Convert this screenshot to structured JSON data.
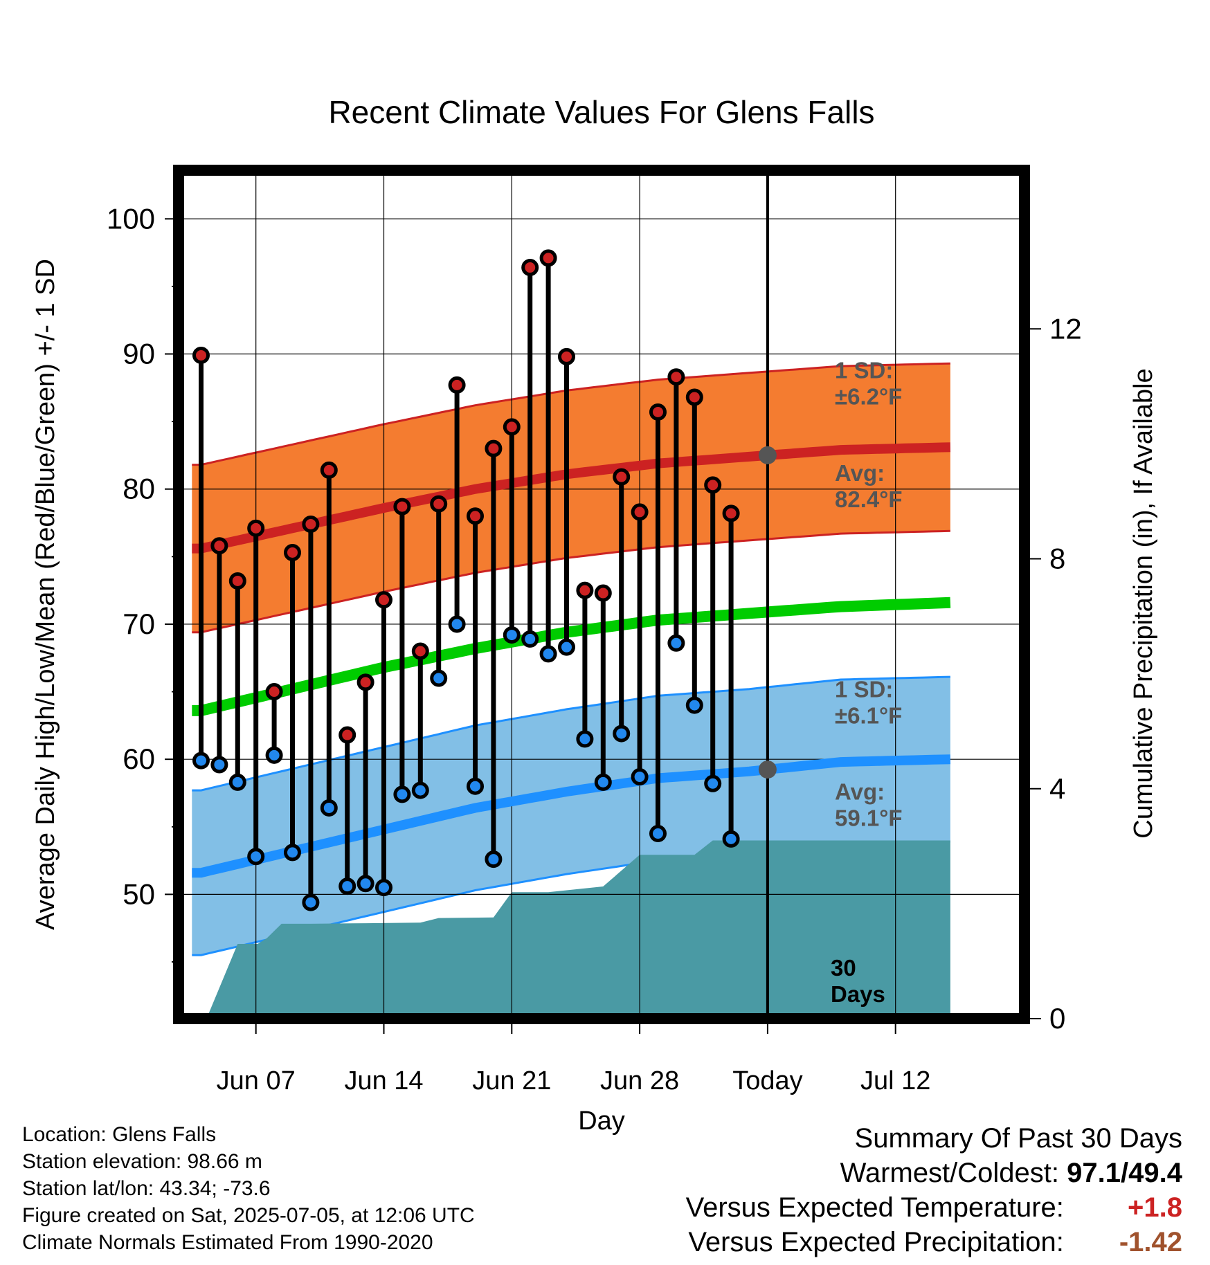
{
  "chart_data": {
    "type": "line",
    "title": "Recent Climate Values For Glens Falls",
    "xlabel": "Day",
    "ylabel": "Average Daily High/Low/Mean (Red/Blue/Green) +/- 1 SD",
    "y2label": "Cumulative Precipitation (in), If Available",
    "ylim": [
      40.8,
      103.6
    ],
    "y2lim": [
      0,
      14.76
    ],
    "xlim": [
      -0.5,
      41.3
    ],
    "x_ticks": [
      {
        "x": 3,
        "label": "Jun 07"
      },
      {
        "x": 10,
        "label": "Jun 14"
      },
      {
        "x": 17,
        "label": "Jun 21"
      },
      {
        "x": 24,
        "label": "Jun 28"
      },
      {
        "x": 31,
        "label": "Today"
      },
      {
        "x": 38,
        "label": "Jul 12"
      }
    ],
    "y_ticks": [
      50,
      60,
      70,
      80,
      90,
      100
    ],
    "y2_ticks": [
      0,
      4,
      8,
      12
    ],
    "grid": true,
    "days_label": "30\nDays",
    "today_x": 31,
    "high_label": "1 SD:\n±6.2°F",
    "high_avg_label": "Avg:\n82.4°F",
    "low_label": "1 SD:\n±6.1°F",
    "low_avg_label": "Avg:\n59.1°F",
    "normals_x": [
      0,
      5,
      10,
      15,
      20,
      25,
      30,
      35,
      41
    ],
    "normal_high": [
      75.6,
      77.1,
      78.6,
      80.0,
      81.1,
      81.9,
      82.4,
      82.9,
      83.1
    ],
    "normal_low": [
      51.6,
      53.2,
      54.8,
      56.4,
      57.6,
      58.6,
      59.1,
      59.8,
      60.0
    ],
    "normal_mean": [
      63.6,
      65.2,
      66.8,
      68.2,
      69.4,
      70.3,
      70.8,
      71.3,
      71.6
    ],
    "high_sd": 6.2,
    "low_sd": 6.1,
    "series": [
      {
        "name": "High",
        "color": "#cc2222",
        "x": [
          0,
          1,
          2,
          3,
          4,
          5,
          6,
          7,
          8,
          9,
          10,
          11,
          12,
          13,
          14,
          15,
          16,
          17,
          18,
          19,
          20,
          21,
          22,
          23,
          24,
          25,
          26,
          27,
          28,
          29,
          30
        ],
        "values": [
          89.9,
          75.8,
          73.2,
          77.1,
          65.0,
          75.3,
          77.4,
          81.4,
          61.8,
          65.7,
          71.8,
          78.7,
          68.0,
          78.9,
          87.7,
          78.0,
          83.0,
          84.6,
          96.4,
          97.1,
          89.8,
          72.5,
          72.3,
          80.9,
          78.3,
          85.7,
          88.3,
          86.8,
          80.3,
          78.2,
          null
        ]
      },
      {
        "name": "Low",
        "color": "#2288ee",
        "x": [
          0,
          1,
          2,
          3,
          4,
          5,
          6,
          7,
          8,
          9,
          10,
          11,
          12,
          13,
          14,
          15,
          16,
          17,
          18,
          19,
          20,
          21,
          22,
          23,
          24,
          25,
          26,
          27,
          28,
          29,
          30
        ],
        "values": [
          59.9,
          59.6,
          58.3,
          52.8,
          60.3,
          53.1,
          49.4,
          56.4,
          50.6,
          50.8,
          50.5,
          57.4,
          57.7,
          66.0,
          70.0,
          58.0,
          52.6,
          69.2,
          68.9,
          67.8,
          68.3,
          61.5,
          58.3,
          61.9,
          58.7,
          54.5,
          68.6,
          64.0,
          58.2,
          54.1,
          null
        ]
      }
    ],
    "precip_x": [
      0.3,
      2.0,
      2.6,
      3.1,
      3.6,
      4.4,
      6.0,
      9.0,
      12.0,
      13.0,
      16.0,
      17.0,
      19.0,
      22.0,
      24.0,
      27.0,
      28.0,
      41.0
    ],
    "precip_values": [
      0.0,
      1.3,
      1.3,
      1.3,
      1.4,
      1.65,
      1.65,
      1.66,
      1.67,
      1.75,
      1.76,
      2.2,
      2.2,
      2.3,
      2.85,
      2.85,
      3.1,
      3.1
    ]
  },
  "footer": {
    "location": "Location: Glens Falls",
    "elevation": "Station elevation: 98.66 m",
    "latlon": "Station lat/lon: 43.34; -73.6",
    "created": "Figure created on Sat, 2025-07-05, at 12:06 UTC",
    "normals": "Climate Normals Estimated From 1990-2020"
  },
  "summary": {
    "title": "Summary Of Past 30 Days",
    "warm_cold_label": "Warmest/Coldest:",
    "warmest": "97.1",
    "coldest": "49.4",
    "temp_label": "Versus Expected Temperature:",
    "temp_value": "+1.8",
    "temp_color": "#cc2222",
    "precip_label": "Versus Expected Precipitation:",
    "precip_value": "-1.42",
    "precip_color": "#a0522d"
  },
  "colors": {
    "high_band": "#f47c30",
    "high_line": "#cc2222",
    "low_band": "#82bfe6",
    "low_line": "#1e90ff",
    "mean_line": "#00cc00",
    "precip": "#4a9aa4",
    "high_dot": "#cc2222",
    "low_dot": "#2288ee",
    "today_dot": "#555555"
  }
}
